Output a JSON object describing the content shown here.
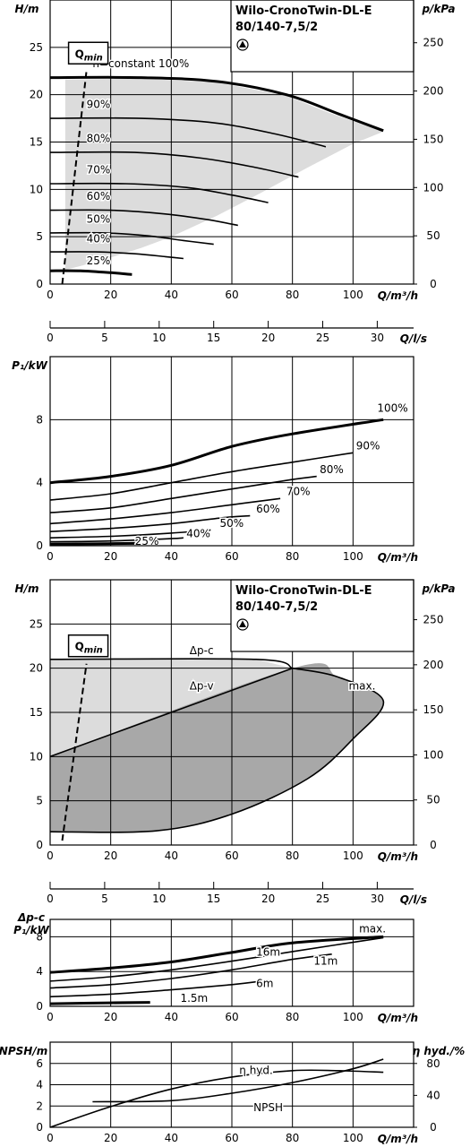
{
  "accent_colors": {
    "line": "#000000",
    "light_area": "#dcdcdc",
    "dark_area": "#a8a8a8"
  },
  "product": {
    "name": "Wilo-CronoTwin-DL-E",
    "model": "80/140-7,5/2",
    "logo_icon": "pump-triangle-icon"
  },
  "chart_data": [
    {
      "id": "hq_n_constant",
      "type": "line",
      "xlabel": "Q/m³/h",
      "ylabel": "H/m",
      "y2label": "p/kPa",
      "x": {
        "min": 0,
        "max": 120,
        "ticks": [
          0,
          20,
          40,
          60,
          80,
          100
        ]
      },
      "y": {
        "min": 0,
        "max": 30,
        "ticks": [
          0,
          5,
          10,
          15,
          20,
          25
        ]
      },
      "y2": {
        "ticks": [
          0,
          50,
          100,
          150,
          200,
          250
        ]
      },
      "grid": true,
      "qmin_label": "Q",
      "qmin_sub": "min",
      "qmin_line": [
        [
          4,
          0
        ],
        [
          12,
          22.5
        ]
      ],
      "shaded_region": [
        [
          5,
          21.6
        ],
        [
          30,
          21.7
        ],
        [
          55,
          21.3
        ],
        [
          78,
          19.9
        ],
        [
          92,
          18.1
        ],
        [
          110,
          16.1
        ],
        [
          100,
          14.8
        ],
        [
          85,
          12.3
        ],
        [
          70,
          9.7
        ],
        [
          55,
          7.2
        ],
        [
          40,
          5.0
        ],
        [
          30,
          3.8
        ],
        [
          20,
          2.8
        ],
        [
          10,
          1.9
        ],
        [
          5,
          1.5
        ]
      ],
      "series": [
        {
          "name": "n=constant 100%",
          "bold": true,
          "points": [
            [
              0,
              21.8
            ],
            [
              30,
              21.8
            ],
            [
              55,
              21.4
            ],
            [
              78,
              20.0
            ],
            [
              95,
              18.0
            ],
            [
              110,
              16.2
            ]
          ]
        },
        {
          "name": "90%",
          "points": [
            [
              0,
              17.5
            ],
            [
              30,
              17.5
            ],
            [
              55,
              17.0
            ],
            [
              75,
              15.8
            ],
            [
              91,
              14.5
            ]
          ]
        },
        {
          "name": "80%",
          "points": [
            [
              0,
              13.9
            ],
            [
              28,
              13.9
            ],
            [
              50,
              13.3
            ],
            [
              68,
              12.3
            ],
            [
              82,
              11.3
            ]
          ]
        },
        {
          "name": "70%",
          "points": [
            [
              0,
              10.6
            ],
            [
              25,
              10.6
            ],
            [
              45,
              10.2
            ],
            [
              60,
              9.4
            ],
            [
              72,
              8.6
            ]
          ]
        },
        {
          "name": "60%",
          "points": [
            [
              0,
              7.8
            ],
            [
              20,
              7.8
            ],
            [
              38,
              7.4
            ],
            [
              52,
              6.8
            ],
            [
              62,
              6.2
            ]
          ]
        },
        {
          "name": "50%",
          "points": [
            [
              0,
              5.4
            ],
            [
              18,
              5.4
            ],
            [
              32,
              5.1
            ],
            [
              44,
              4.6
            ],
            [
              54,
              4.2
            ]
          ]
        },
        {
          "name": "40%",
          "points": [
            [
              0,
              3.4
            ],
            [
              15,
              3.4
            ],
            [
              28,
              3.2
            ],
            [
              38,
              2.9
            ],
            [
              44,
              2.7
            ]
          ]
        },
        {
          "name": "25%",
          "bold": true,
          "points": [
            [
              0,
              1.4
            ],
            [
              10,
              1.4
            ],
            [
              20,
              1.2
            ],
            [
              27,
              1.0
            ]
          ]
        }
      ],
      "secondary_axis": {
        "xlabel": "Q/l/s",
        "ticks": [
          0,
          5,
          10,
          15,
          20,
          25,
          30
        ]
      }
    },
    {
      "id": "p1_n_constant",
      "type": "line",
      "xlabel": "Q/m³/h",
      "ylabel": "P₁/kW",
      "x": {
        "min": 0,
        "max": 120,
        "ticks": [
          0,
          20,
          40,
          60,
          80,
          100
        ]
      },
      "y": {
        "min": 0,
        "max": 12,
        "ticks": [
          0,
          4,
          8
        ]
      },
      "grid": true,
      "series": [
        {
          "name": "100%",
          "bold": true,
          "points": [
            [
              0,
              4.0
            ],
            [
              20,
              4.4
            ],
            [
              40,
              5.1
            ],
            [
              60,
              6.3
            ],
            [
              80,
              7.1
            ],
            [
              110,
              8.0
            ]
          ]
        },
        {
          "name": "90%",
          "points": [
            [
              0,
              2.9
            ],
            [
              20,
              3.3
            ],
            [
              40,
              4.0
            ],
            [
              60,
              4.7
            ],
            [
              80,
              5.3
            ],
            [
              100,
              5.9
            ]
          ]
        },
        {
          "name": "80%",
          "points": [
            [
              0,
              2.1
            ],
            [
              20,
              2.4
            ],
            [
              40,
              3.0
            ],
            [
              60,
              3.6
            ],
            [
              80,
              4.2
            ],
            [
              88,
              4.4
            ]
          ]
        },
        {
          "name": "70%",
          "points": [
            [
              0,
              1.4
            ],
            [
              20,
              1.7
            ],
            [
              40,
              2.1
            ],
            [
              60,
              2.6
            ],
            [
              76,
              3.0
            ]
          ]
        },
        {
          "name": "60%",
          "points": [
            [
              0,
              0.9
            ],
            [
              20,
              1.1
            ],
            [
              40,
              1.4
            ],
            [
              58,
              1.8
            ],
            [
              66,
              1.9
            ]
          ]
        },
        {
          "name": "50%",
          "points": [
            [
              0,
              0.5
            ],
            [
              20,
              0.6
            ],
            [
              40,
              0.8
            ],
            [
              53,
              1.0
            ]
          ]
        },
        {
          "name": "40%",
          "points": [
            [
              0,
              0.25
            ],
            [
              20,
              0.3
            ],
            [
              40,
              0.45
            ],
            [
              44,
              0.5
            ]
          ]
        },
        {
          "name": "25%",
          "bold": true,
          "points": [
            [
              0,
              0.1
            ],
            [
              15,
              0.12
            ],
            [
              28,
              0.15
            ]
          ]
        }
      ]
    },
    {
      "id": "hq_dp",
      "type": "area",
      "xlabel": "Q/m³/h",
      "ylabel": "H/m",
      "y2label": "p/kPa",
      "x": {
        "min": 0,
        "max": 120,
        "ticks": [
          0,
          20,
          40,
          60,
          80,
          100
        ]
      },
      "y": {
        "min": 0,
        "max": 30,
        "ticks": [
          0,
          5,
          10,
          15,
          20,
          25
        ]
      },
      "y2": {
        "ticks": [
          0,
          50,
          100,
          150,
          200,
          250
        ]
      },
      "grid": true,
      "qmin_label": "Q",
      "qmin_sub": "min",
      "qmin_line": [
        [
          4,
          0.5
        ],
        [
          12,
          20.5
        ]
      ],
      "light_region": [
        [
          0,
          21.0
        ],
        [
          68,
          21.0
        ],
        [
          80,
          20.0
        ],
        [
          0,
          10.0
        ]
      ],
      "dark_region": [
        [
          0,
          10.0
        ],
        [
          80,
          20.0
        ],
        [
          95,
          19.0
        ],
        [
          110,
          16.3
        ],
        [
          100,
          12.0
        ],
        [
          85,
          7.5
        ],
        [
          60,
          3.5
        ],
        [
          35,
          1.6
        ],
        [
          0,
          1.5
        ]
      ],
      "series": [
        {
          "name": "Δp-c",
          "points": [
            [
              0,
              21.0
            ],
            [
              68,
              21.0
            ],
            [
              80,
              20.0
            ]
          ]
        },
        {
          "name": "Δp-v",
          "points": [
            [
              0,
              10.0
            ],
            [
              40,
              15.0
            ],
            [
              80,
              20.0
            ]
          ]
        },
        {
          "name": "max.",
          "points": [
            [
              80,
              20.0
            ],
            [
              95,
              19.0
            ],
            [
              110,
              16.3
            ],
            [
              100,
              12.0
            ],
            [
              85,
              7.5
            ],
            [
              60,
              3.5
            ],
            [
              35,
              1.6
            ],
            [
              0,
              1.5
            ]
          ]
        }
      ],
      "secondary_axis": {
        "xlabel": "Q/l/s",
        "ticks": [
          0,
          5,
          10,
          15,
          20,
          25,
          30
        ]
      }
    },
    {
      "id": "p1_dp",
      "type": "line",
      "xlabel": "Q/m³/h",
      "ylabel_top": "Δp-c",
      "ylabel": "P₁/kW",
      "x": {
        "min": 0,
        "max": 120,
        "ticks": [
          0,
          20,
          40,
          60,
          80,
          100
        ]
      },
      "y": {
        "min": 0,
        "max": 10,
        "ticks": [
          0,
          4,
          8
        ]
      },
      "grid": true,
      "series": [
        {
          "name": "max.",
          "bold": true,
          "points": [
            [
              0,
              3.9
            ],
            [
              20,
              4.4
            ],
            [
              40,
              5.1
            ],
            [
              60,
              6.2
            ],
            [
              80,
              7.3
            ],
            [
              110,
              8.0
            ]
          ]
        },
        {
          "name": "16m",
          "points": [
            [
              0,
              2.9
            ],
            [
              20,
              3.4
            ],
            [
              40,
              4.2
            ],
            [
              60,
              5.2
            ],
            [
              80,
              6.3
            ],
            [
              110,
              7.9
            ]
          ]
        },
        {
          "name": "11m",
          "points": [
            [
              0,
              2.1
            ],
            [
              20,
              2.5
            ],
            [
              40,
              3.2
            ],
            [
              60,
              4.2
            ],
            [
              80,
              5.4
            ],
            [
              93,
              6.0
            ]
          ]
        },
        {
          "name": "6m",
          "points": [
            [
              0,
              1.1
            ],
            [
              20,
              1.4
            ],
            [
              40,
              1.9
            ],
            [
              60,
              2.5
            ],
            [
              72,
              3.0
            ]
          ]
        },
        {
          "name": "1.5m",
          "bold": true,
          "points": [
            [
              0,
              0.3
            ],
            [
              20,
              0.4
            ],
            [
              33,
              0.45
            ]
          ]
        }
      ]
    },
    {
      "id": "npsh_eta",
      "type": "line",
      "xlabel": "Q/m³/h",
      "ylabel": "NPSH/m",
      "y2label": "η hyd./%",
      "x": {
        "min": 0,
        "max": 120,
        "ticks": [
          0,
          20,
          40,
          60,
          80,
          100
        ]
      },
      "y": {
        "min": 0,
        "max": 8,
        "ticks": [
          0,
          2,
          4,
          6
        ]
      },
      "y2": {
        "min": 0,
        "max": 106.7,
        "ticks": [
          0,
          40,
          80
        ]
      },
      "grid": true,
      "series": [
        {
          "name": "η hyd.",
          "axis": "y2",
          "points": [
            [
              0,
              0
            ],
            [
              20,
              26
            ],
            [
              40,
              48
            ],
            [
              60,
              63
            ],
            [
              80,
              71
            ],
            [
              95,
              71
            ],
            [
              110,
              69
            ]
          ]
        },
        {
          "name": "NPSH",
          "axis": "y",
          "points": [
            [
              14,
              2.4
            ],
            [
              40,
              2.5
            ],
            [
              60,
              3.2
            ],
            [
              80,
              4.2
            ],
            [
              100,
              5.5
            ],
            [
              110,
              6.4
            ]
          ]
        }
      ]
    }
  ]
}
